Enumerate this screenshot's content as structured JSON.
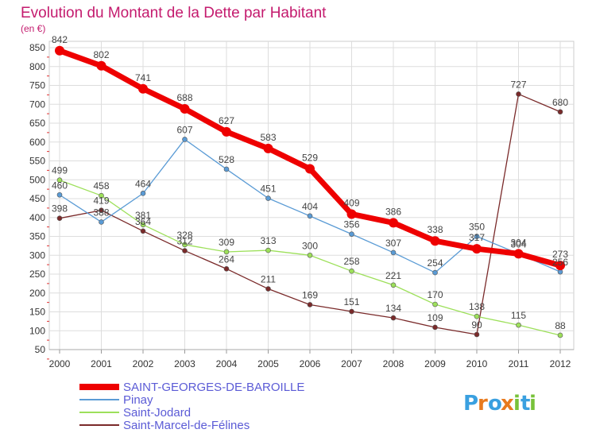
{
  "chart_data": {
    "type": "line",
    "title": "Evolution du Montant de la Dette par Habitant",
    "subtitle": "(en €)",
    "xlabel": "",
    "ylabel": "",
    "categories": [
      "2000",
      "2001",
      "2002",
      "2003",
      "2004",
      "2005",
      "2006",
      "2007",
      "2008",
      "2009",
      "2010",
      "2011",
      "2012"
    ],
    "ylim": [
      50,
      850
    ],
    "yticks": [
      50,
      100,
      150,
      200,
      250,
      300,
      350,
      400,
      450,
      500,
      550,
      600,
      650,
      700,
      750,
      800,
      850
    ],
    "grid": true,
    "legend_position": "bottom-left",
    "series": [
      {
        "name": "SAINT-GEORGES-DE-BAROILLE",
        "color": "#ee0000",
        "values": [
          842,
          802,
          741,
          688,
          627,
          583,
          529,
          409,
          386,
          338,
          317,
          304,
          273
        ],
        "labels": [
          "842",
          "802",
          "741",
          "688",
          "627",
          "583",
          "529",
          "409",
          "386",
          "338",
          "317",
          "304",
          "273"
        ]
      },
      {
        "name": "Pinay",
        "color": "#5a9bd5",
        "values": [
          460,
          388,
          464,
          607,
          528,
          451,
          404,
          356,
          307,
          254,
          350,
          304,
          256
        ],
        "labels": [
          "460",
          "388",
          "464",
          "607",
          "528",
          "451",
          "404",
          "356",
          "307",
          "254",
          "350",
          "304",
          "256"
        ]
      },
      {
        "name": "Saint-Jodard",
        "color": "#9de05a",
        "values": [
          499,
          458,
          381,
          328,
          309,
          313,
          300,
          258,
          221,
          170,
          138,
          115,
          88
        ],
        "labels": [
          "499",
          "458",
          "381",
          "328",
          "309",
          "313",
          "300",
          "258",
          "221",
          "170",
          "138",
          "115",
          "88"
        ]
      },
      {
        "name": "Saint-Marcel-de-Félines",
        "color": "#7a2a2a",
        "values": [
          398,
          419,
          364,
          312,
          264,
          211,
          169,
          151,
          134,
          109,
          90,
          727,
          680
        ],
        "labels": [
          "398",
          "419",
          "364",
          "312",
          "264",
          "211",
          "169",
          "151",
          "134",
          "109",
          "90",
          "727",
          "680"
        ]
      }
    ]
  },
  "logo": {
    "text": "Proxiti",
    "colors": [
      "#3aa0e0",
      "#e87a1e",
      "#3aa0e0",
      "#e87a1e",
      "#78c23a",
      "#3aa0e0",
      "#78c23a"
    ]
  }
}
